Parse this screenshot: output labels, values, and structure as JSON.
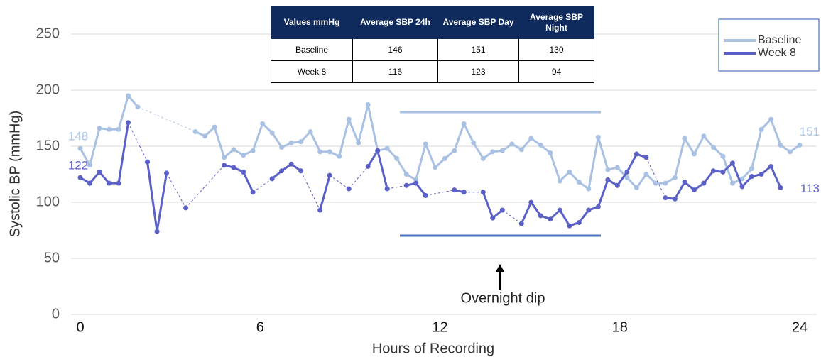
{
  "chart_data": {
    "type": "line",
    "xlabel": "Hours of Recording",
    "ylabel": "Systolic BP (mmHg)",
    "annotation": "Overnight dip",
    "x": [
      0,
      0.32,
      0.64,
      0.96,
      1.28,
      1.6,
      1.92,
      2.24,
      2.56,
      2.88,
      3.2,
      3.52,
      3.84,
      4.16,
      4.48,
      4.8,
      5.12,
      5.44,
      5.76,
      6.08,
      6.4,
      6.72,
      7.04,
      7.36,
      7.68,
      8,
      8.32,
      8.64,
      8.96,
      9.28,
      9.6,
      9.92,
      10.24,
      10.56,
      10.88,
      11.2,
      11.52,
      11.84,
      12.16,
      12.48,
      12.8,
      13.12,
      13.44,
      13.76,
      14.08,
      14.4,
      14.72,
      15.04,
      15.36,
      15.68,
      16,
      16.32,
      16.64,
      16.96,
      17.28,
      17.6,
      17.92,
      18.24,
      18.56,
      18.88,
      19.2,
      19.52,
      19.84,
      20.16,
      20.48,
      20.8,
      21.12,
      21.44,
      21.76,
      22.08,
      22.4,
      22.72,
      23.04,
      23.36,
      23.68,
      24
    ],
    "series": [
      {
        "name": "Baseline",
        "color": "#a9c1e2",
        "values": [
          148,
          133,
          166,
          165,
          165,
          195,
          185,
          null,
          null,
          null,
          null,
          null,
          163,
          159,
          167,
          140,
          147,
          142,
          146,
          170,
          162,
          149,
          153,
          154,
          163,
          145,
          145,
          141,
          174,
          153,
          187,
          146,
          148,
          139,
          125,
          120,
          152,
          131,
          139,
          146,
          170,
          153,
          139,
          145,
          146,
          152,
          147,
          157,
          151,
          144,
          119,
          127,
          118,
          112,
          158,
          129,
          131,
          122,
          113,
          125,
          117,
          117,
          122,
          157,
          143,
          159,
          149,
          141,
          117,
          121,
          130,
          165,
          174,
          151,
          145,
          151
        ]
      },
      {
        "name": "Week 8",
        "color": "#5b60c6",
        "values": [
          122,
          117,
          127,
          117,
          117,
          171,
          null,
          136,
          74,
          126,
          null,
          95,
          null,
          null,
          null,
          133,
          131,
          127,
          109,
          null,
          121,
          128,
          134,
          128,
          null,
          93,
          124,
          null,
          112,
          null,
          132,
          146,
          112,
          null,
          115,
          117,
          106,
          null,
          null,
          111,
          109,
          null,
          109,
          86,
          93,
          null,
          81,
          100,
          88,
          85,
          93,
          79,
          82,
          93,
          96,
          120,
          115,
          127,
          143,
          140,
          null,
          104,
          103,
          118,
          111,
          117,
          128,
          127,
          135,
          114,
          123,
          125,
          132,
          113,
          null,
          null
        ]
      }
    ],
    "xlim": [
      0,
      24
    ],
    "xticks": [
      0,
      6,
      12,
      18,
      24
    ],
    "ylim": [
      0,
      250
    ],
    "yticks": [
      0,
      50,
      100,
      150,
      200,
      250
    ],
    "grid": true,
    "legend": "upper right"
  },
  "table": {
    "header": [
      "Values mmHg",
      "Average SBP 24h",
      "Average SBP Day",
      "Average SBP Night"
    ],
    "rows": [
      [
        "Baseline",
        "146",
        "151",
        "130"
      ],
      [
        "Week 8",
        "116",
        "123",
        "94"
      ]
    ]
  }
}
